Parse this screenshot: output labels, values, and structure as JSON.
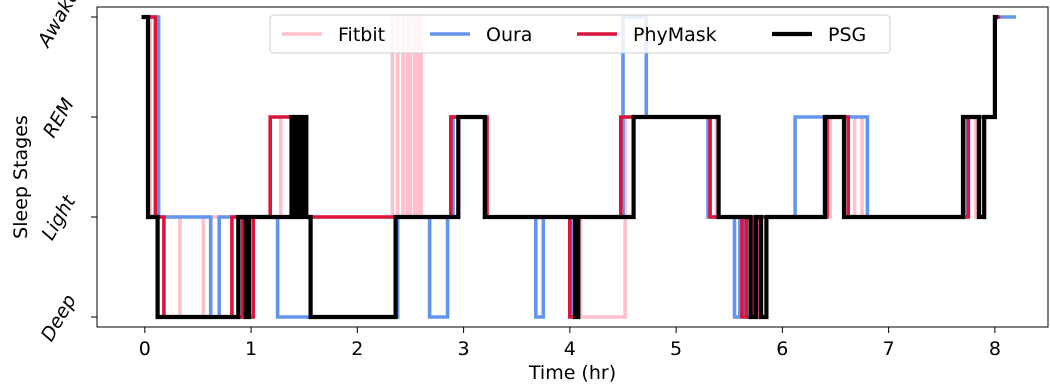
{
  "chart_data": {
    "type": "line",
    "step": true,
    "xlabel": "Time (hr)",
    "ylabel": "Sleep Stages",
    "xlim": [
      -0.45,
      8.5
    ],
    "ylim": [
      -0.1,
      3.1
    ],
    "xticks": [
      0,
      1,
      2,
      3,
      4,
      5,
      6,
      7,
      8
    ],
    "yticks": [
      {
        "value": 0,
        "label": "Deep"
      },
      {
        "value": 1,
        "label": "Light"
      },
      {
        "value": 2,
        "label": "REM"
      },
      {
        "value": 3,
        "label": "Awake"
      }
    ],
    "legend": {
      "placement": "top-center",
      "ncol": 4
    },
    "series": [
      {
        "name": "Fitbit",
        "color": "#ffc0cb",
        "x": [
          -0.03,
          0.05,
          0.1,
          0.2,
          0.33,
          0.55,
          0.6,
          0.82,
          0.95,
          1.02,
          1.28,
          1.4,
          1.5,
          2.28,
          2.33,
          2.38,
          2.43,
          2.47,
          2.5,
          2.54,
          2.57,
          2.6,
          2.65,
          2.88,
          3.0,
          3.2,
          4.05,
          4.1,
          4.52,
          4.62,
          5.32,
          5.38,
          5.62,
          5.7,
          5.78,
          6.28,
          6.45,
          6.55,
          6.62,
          6.68,
          6.75,
          7.68,
          7.75,
          7.82,
          7.88,
          8.0
        ],
        "y": [
          3,
          1,
          1,
          1,
          0,
          1,
          1,
          1,
          0,
          1,
          2,
          1,
          1,
          1,
          3,
          1,
          3,
          1,
          3,
          1,
          3,
          1,
          1,
          2,
          2,
          1,
          1,
          0,
          2,
          2,
          2,
          1,
          1,
          0,
          1,
          1,
          2,
          2,
          1,
          2,
          1,
          1,
          2,
          1,
          2,
          3
        ]
      },
      {
        "name": "Oura",
        "color": "#6495ed",
        "x": [
          -0.03,
          0.1,
          0.13,
          0.55,
          0.62,
          0.7,
          0.75,
          0.88,
          0.92,
          0.97,
          1.02,
          1.2,
          1.25,
          1.58,
          2.33,
          2.38,
          2.68,
          2.85,
          2.9,
          3.0,
          3.2,
          3.68,
          3.75,
          4.02,
          4.08,
          4.5,
          4.68,
          4.72,
          5.3,
          5.55,
          5.6,
          5.65,
          5.78,
          6.08,
          6.12,
          6.72,
          6.8,
          7.65,
          7.72,
          7.82,
          7.9,
          8.0,
          8.05,
          8.2
        ],
        "y": [
          3,
          3,
          1,
          1,
          0,
          1,
          1,
          0,
          1,
          1,
          1,
          1,
          0,
          0,
          0,
          1,
          0,
          1,
          2,
          2,
          1,
          0,
          1,
          0,
          1,
          3,
          3,
          2,
          1,
          0,
          1,
          0,
          1,
          1,
          2,
          2,
          1,
          1,
          2,
          2,
          2,
          3,
          3,
          3
        ]
      },
      {
        "name": "PhyMask",
        "color": "#dc143c",
        "x": [
          -0.03,
          0.05,
          0.1,
          0.18,
          0.22,
          0.82,
          0.88,
          0.92,
          0.98,
          1.02,
          1.18,
          1.22,
          1.38,
          1.45,
          2.3,
          2.35,
          2.88,
          2.95,
          3.22,
          3.28,
          4.0,
          4.05,
          4.08,
          4.48,
          4.55,
          5.32,
          5.38,
          5.55,
          5.62,
          5.66,
          5.72,
          5.76,
          5.82,
          6.36,
          6.42,
          6.62,
          6.7,
          7.7,
          7.75,
          7.85,
          7.92,
          8.0,
          8.05
        ],
        "y": [
          3,
          3,
          1,
          0,
          0,
          1,
          0,
          1,
          0,
          1,
          2,
          2,
          1,
          1,
          1,
          1,
          2,
          2,
          1,
          1,
          0,
          1,
          1,
          2,
          2,
          1,
          1,
          1,
          0,
          1,
          0,
          1,
          1,
          1,
          2,
          1,
          1,
          1,
          2,
          2,
          2,
          3,
          3
        ]
      },
      {
        "name": "PSG",
        "color": "#000000",
        "x": [
          -0.03,
          0.03,
          0.12,
          0.88,
          0.95,
          0.98,
          1.02,
          1.38,
          1.42,
          1.44,
          1.46,
          1.48,
          1.52,
          1.56,
          2.32,
          2.36,
          2.95,
          3.0,
          3.2,
          3.25,
          4.05,
          4.08,
          4.6,
          5.4,
          5.45,
          5.7,
          5.75,
          5.8,
          5.85,
          6.35,
          6.4,
          6.58,
          6.65,
          7.7,
          7.78,
          7.85,
          7.9,
          7.93,
          8.0,
          8.03
        ],
        "y": [
          3,
          1,
          0,
          1,
          0,
          1,
          1,
          2,
          1,
          2,
          1,
          2,
          1,
          0,
          0,
          1,
          2,
          2,
          1,
          1,
          0,
          1,
          2,
          1,
          1,
          0,
          1,
          0,
          1,
          1,
          2,
          1,
          1,
          2,
          2,
          1,
          2,
          2,
          3,
          3
        ]
      }
    ]
  }
}
